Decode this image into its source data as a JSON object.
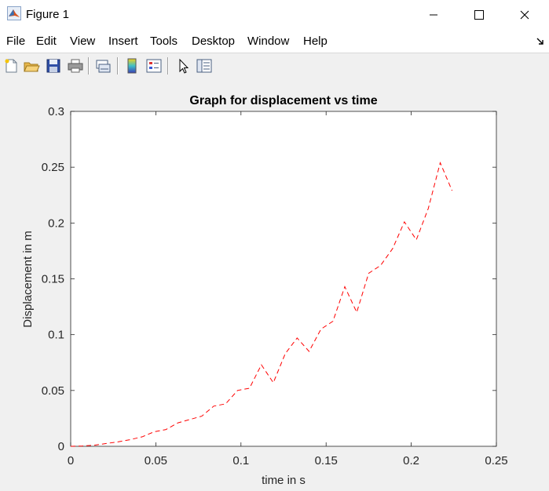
{
  "window": {
    "title": "Figure 1"
  },
  "menu": {
    "items": [
      "File",
      "Edit",
      "View",
      "Insert",
      "Tools",
      "Desktop",
      "Window",
      "Help"
    ]
  },
  "toolbar": {
    "buttons": [
      "new-figure-icon",
      "open-file-icon",
      "save-icon",
      "print-icon",
      "link-plot-icon",
      "insert-colorbar-icon",
      "insert-legend-icon",
      "edit-plot-icon",
      "property-inspector-icon"
    ]
  },
  "colors": {
    "line": "#ff0000",
    "plot_bg": "#ffffff",
    "figure_bg": "#f0f0f0"
  },
  "chart_data": {
    "type": "line",
    "title": "Graph for displacement vs time",
    "xlabel": "time in s",
    "ylabel": "Displacement in m",
    "xlim": [
      0,
      0.25
    ],
    "ylim": [
      0,
      0.3
    ],
    "xticks": [
      0,
      0.05,
      0.1,
      0.15,
      0.2,
      0.25
    ],
    "xtick_labels": [
      "0",
      "0.05",
      "0.1",
      "0.15",
      "0.2",
      "0.25"
    ],
    "yticks": [
      0,
      0.05,
      0.1,
      0.15,
      0.2,
      0.25,
      0.3
    ],
    "ytick_labels": [
      "0",
      "0.05",
      "0.1",
      "0.15",
      "0.2",
      "0.25",
      "0.3"
    ],
    "grid": false,
    "line_style": "dashed",
    "series": [
      {
        "x": [
          0,
          0.007,
          0.014,
          0.021,
          0.028,
          0.035,
          0.042,
          0.049,
          0.056,
          0.063,
          0.07,
          0.077,
          0.084,
          0.091,
          0.098,
          0.105,
          0.112,
          0.119,
          0.126,
          0.133,
          0.14,
          0.147,
          0.154,
          0.161,
          0.168,
          0.175,
          0.182,
          0.189,
          0.196,
          0.203,
          0.21,
          0.217,
          0.224
        ],
        "y": [
          0,
          0.0003,
          0.001,
          0.0025,
          0.004,
          0.006,
          0.0085,
          0.013,
          0.015,
          0.021,
          0.024,
          0.027,
          0.036,
          0.038,
          0.05,
          0.052,
          0.073,
          0.057,
          0.083,
          0.097,
          0.085,
          0.105,
          0.112,
          0.143,
          0.12,
          0.155,
          0.162,
          0.177,
          0.201,
          0.185,
          0.213,
          0.254,
          0.229
        ]
      }
    ]
  }
}
